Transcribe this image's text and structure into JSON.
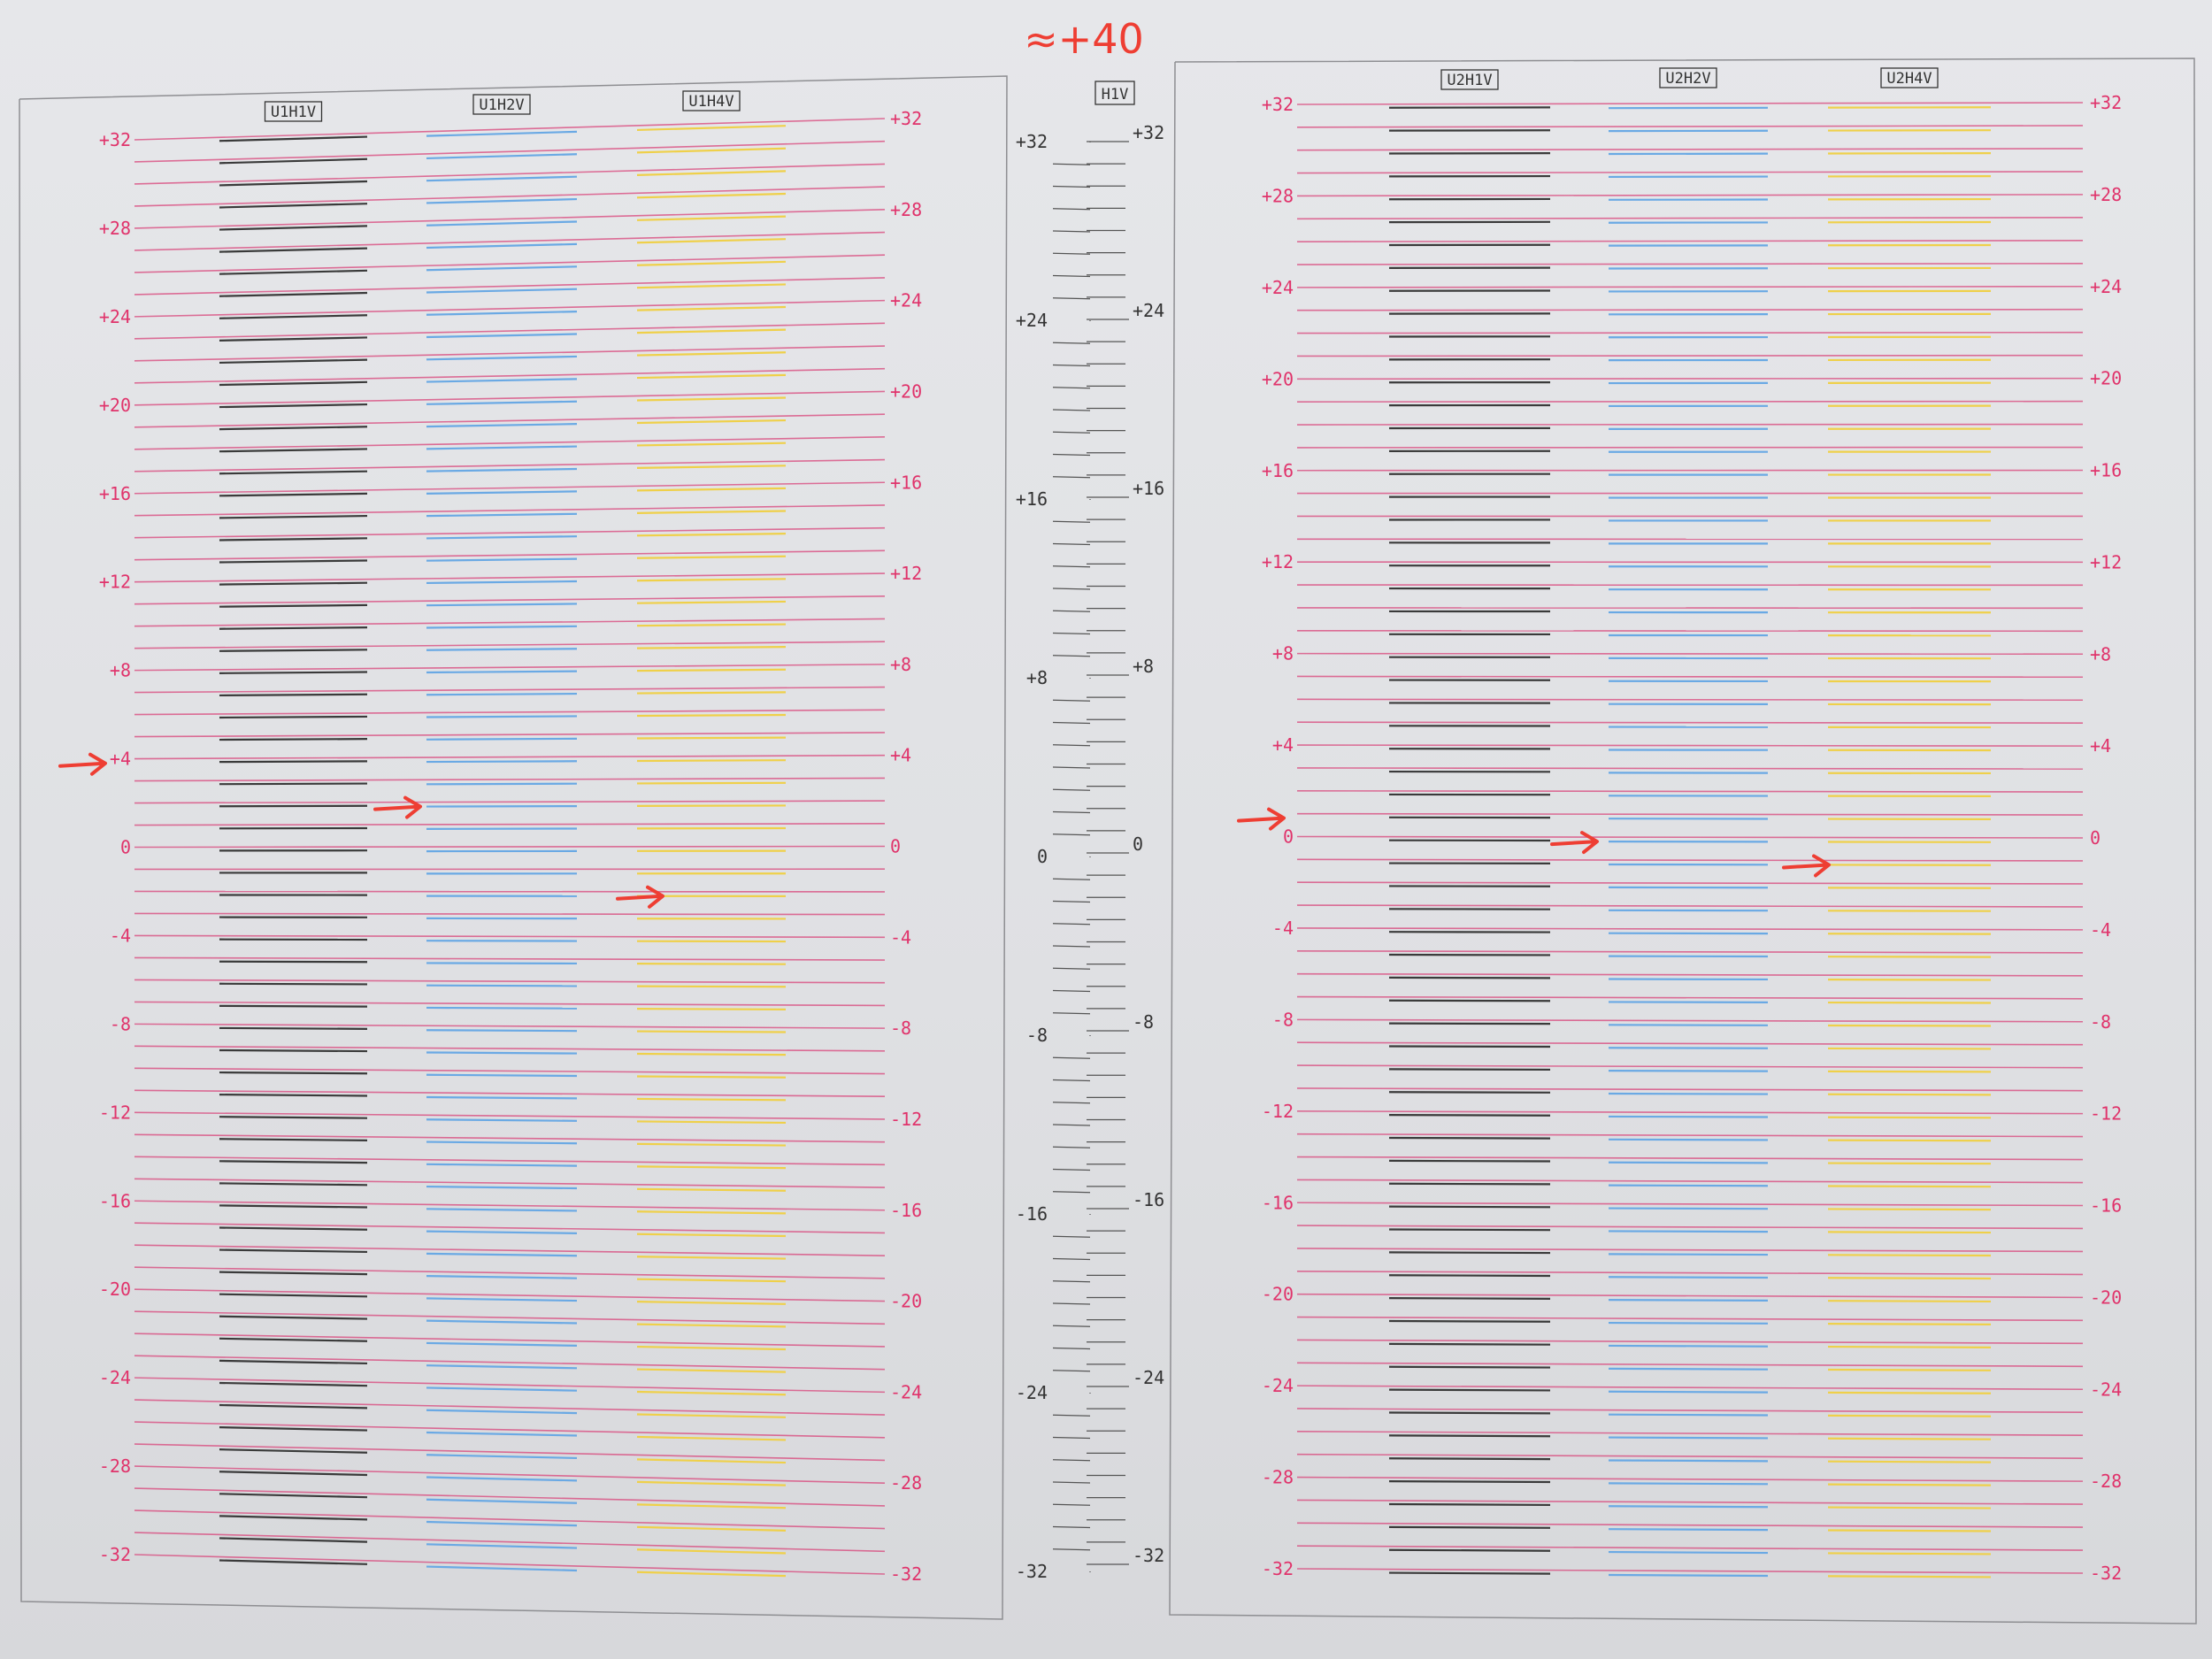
{
  "annotation": {
    "text": "≈+40",
    "color": "#ee3e33"
  },
  "scale_values": [
    "+32",
    "+28",
    "+24",
    "+20",
    "+16",
    "+12",
    "+8",
    "+4",
    "0",
    "-4",
    "-8",
    "-12",
    "-16",
    "-20",
    "-24",
    "-28",
    "-32"
  ],
  "center_scale_values": [
    "+32",
    "+24",
    "+16",
    "+8",
    "0",
    "-8",
    "-16",
    "-24",
    "-32"
  ],
  "colors": {
    "ref_lines": "#d9447a",
    "scale_text": "#e0336b",
    "black_ink": "#3a3a3a",
    "cyan_ink": "#6aa9e4",
    "yellow_ink": "#efd04a",
    "arrow": "#ee3e33",
    "frame": "#8e8e92"
  },
  "left_panel": {
    "patterns": [
      {
        "label": "U1H1V",
        "ink": "black",
        "marked_value": "+4"
      },
      {
        "label": "U1H2V",
        "ink": "cyan",
        "marked_value": "+2"
      },
      {
        "label": "U1H4V",
        "ink": "yellow",
        "marked_value": "-2"
      }
    ]
  },
  "center_panel": {
    "label": "H1V"
  },
  "right_panel": {
    "patterns": [
      {
        "label": "U2H1V",
        "ink": "black",
        "marked_value": "+1"
      },
      {
        "label": "U2H2V",
        "ink": "cyan",
        "marked_value": "0"
      },
      {
        "label": "U2H4V",
        "ink": "yellow",
        "marked_value": "-1"
      }
    ]
  }
}
